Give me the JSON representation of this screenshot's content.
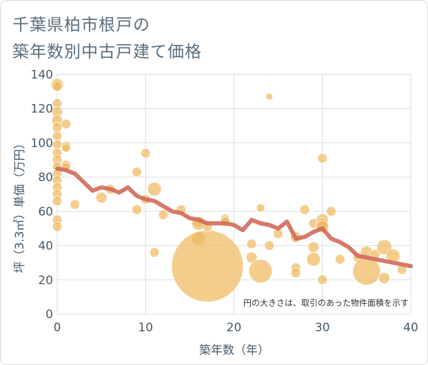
{
  "title_line1": "千葉県柏市根戸の",
  "title_line2": "築年数別中古戸建て価格",
  "colors": {
    "bubble": "#f0b85c",
    "line": "#d2695a",
    "grid": "#d6dde6",
    "text": "#44596b"
  },
  "chart_data": {
    "type": "scatter",
    "xlabel": "築年数（年）",
    "ylabel": "坪（3.3㎡）単価（万円）",
    "xlim": [
      0,
      40
    ],
    "ylim": [
      0,
      140
    ],
    "xticks": [
      0,
      10,
      20,
      30,
      40
    ],
    "yticks": [
      0,
      20,
      40,
      60,
      80,
      100,
      120,
      140
    ],
    "grid": true,
    "note": "円の大きさは、取引のあった物件面積を示す",
    "points": [
      {
        "x": 0,
        "y": 134,
        "s": 9
      },
      {
        "x": 0,
        "y": 133,
        "s": 7
      },
      {
        "x": 0,
        "y": 123,
        "s": 7
      },
      {
        "x": 0,
        "y": 118,
        "s": 8
      },
      {
        "x": 0,
        "y": 113,
        "s": 8
      },
      {
        "x": 0,
        "y": 109,
        "s": 7
      },
      {
        "x": 0,
        "y": 104,
        "s": 7
      },
      {
        "x": 0,
        "y": 99,
        "s": 7
      },
      {
        "x": 0,
        "y": 94,
        "s": 7
      },
      {
        "x": 0,
        "y": 90,
        "s": 7
      },
      {
        "x": 0,
        "y": 86,
        "s": 7
      },
      {
        "x": 0,
        "y": 82,
        "s": 7
      },
      {
        "x": 0,
        "y": 78,
        "s": 7
      },
      {
        "x": 0,
        "y": 74,
        "s": 7
      },
      {
        "x": 0,
        "y": 70,
        "s": 7
      },
      {
        "x": 0,
        "y": 66,
        "s": 7
      },
      {
        "x": 0,
        "y": 55,
        "s": 7
      },
      {
        "x": 0,
        "y": 51,
        "s": 7
      },
      {
        "x": 1,
        "y": 111,
        "s": 7
      },
      {
        "x": 1,
        "y": 98,
        "s": 7
      },
      {
        "x": 1,
        "y": 97,
        "s": 6
      },
      {
        "x": 1,
        "y": 87,
        "s": 7
      },
      {
        "x": 1,
        "y": 86,
        "s": 6
      },
      {
        "x": 2,
        "y": 64,
        "s": 7
      },
      {
        "x": 5,
        "y": 68,
        "s": 8
      },
      {
        "x": 6,
        "y": 73,
        "s": 7
      },
      {
        "x": 9,
        "y": 83,
        "s": 7
      },
      {
        "x": 9,
        "y": 61,
        "s": 7
      },
      {
        "x": 10,
        "y": 94,
        "s": 7
      },
      {
        "x": 10,
        "y": 67,
        "s": 7
      },
      {
        "x": 11,
        "y": 73,
        "s": 10
      },
      {
        "x": 11,
        "y": 36,
        "s": 7
      },
      {
        "x": 12,
        "y": 58,
        "s": 7
      },
      {
        "x": 14,
        "y": 61,
        "s": 7
      },
      {
        "x": 16,
        "y": 54,
        "s": 8
      },
      {
        "x": 16,
        "y": 53,
        "s": 10
      },
      {
        "x": 16,
        "y": 44,
        "s": 10
      },
      {
        "x": 17,
        "y": 28,
        "s": 52
      },
      {
        "x": 17,
        "y": 51,
        "s": 7
      },
      {
        "x": 19,
        "y": 56,
        "s": 6
      },
      {
        "x": 19,
        "y": 54,
        "s": 7
      },
      {
        "x": 22,
        "y": 41,
        "s": 7
      },
      {
        "x": 22,
        "y": 33,
        "s": 8
      },
      {
        "x": 23,
        "y": 62,
        "s": 6
      },
      {
        "x": 23,
        "y": 25,
        "s": 17
      },
      {
        "x": 24,
        "y": 127,
        "s": 5
      },
      {
        "x": 24,
        "y": 40,
        "s": 7
      },
      {
        "x": 25,
        "y": 47,
        "s": 7
      },
      {
        "x": 27,
        "y": 45,
        "s": 8
      },
      {
        "x": 27,
        "y": 27,
        "s": 7
      },
      {
        "x": 27,
        "y": 24,
        "s": 7
      },
      {
        "x": 28,
        "y": 61,
        "s": 7
      },
      {
        "x": 29,
        "y": 53,
        "s": 7
      },
      {
        "x": 29,
        "y": 39,
        "s": 8
      },
      {
        "x": 29,
        "y": 32,
        "s": 10
      },
      {
        "x": 30,
        "y": 91,
        "s": 7
      },
      {
        "x": 30,
        "y": 55,
        "s": 9
      },
      {
        "x": 30,
        "y": 53,
        "s": 8
      },
      {
        "x": 30,
        "y": 51,
        "s": 9
      },
      {
        "x": 30,
        "y": 20,
        "s": 7
      },
      {
        "x": 31,
        "y": 60,
        "s": 7
      },
      {
        "x": 32,
        "y": 32,
        "s": 7
      },
      {
        "x": 34,
        "y": 33,
        "s": 7
      },
      {
        "x": 35,
        "y": 36,
        "s": 9
      },
      {
        "x": 35,
        "y": 25,
        "s": 20
      },
      {
        "x": 36,
        "y": 35,
        "s": 7
      },
      {
        "x": 37,
        "y": 39,
        "s": 11
      },
      {
        "x": 37,
        "y": 21,
        "s": 8
      },
      {
        "x": 38,
        "y": 34,
        "s": 10
      },
      {
        "x": 39,
        "y": 26,
        "s": 7
      }
    ],
    "trend": [
      {
        "x": 0,
        "y": 85
      },
      {
        "x": 1,
        "y": 84
      },
      {
        "x": 2,
        "y": 82
      },
      {
        "x": 3,
        "y": 77
      },
      {
        "x": 4,
        "y": 72
      },
      {
        "x": 5,
        "y": 74
      },
      {
        "x": 6,
        "y": 73
      },
      {
        "x": 7,
        "y": 71
      },
      {
        "x": 8,
        "y": 74
      },
      {
        "x": 9,
        "y": 69
      },
      {
        "x": 10,
        "y": 67
      },
      {
        "x": 11,
        "y": 66
      },
      {
        "x": 12,
        "y": 63
      },
      {
        "x": 13,
        "y": 60
      },
      {
        "x": 14,
        "y": 59
      },
      {
        "x": 15,
        "y": 56
      },
      {
        "x": 16,
        "y": 55
      },
      {
        "x": 17,
        "y": 53
      },
      {
        "x": 18,
        "y": 53
      },
      {
        "x": 19,
        "y": 53
      },
      {
        "x": 20,
        "y": 52
      },
      {
        "x": 21,
        "y": 49
      },
      {
        "x": 22,
        "y": 55
      },
      {
        "x": 23,
        "y": 53
      },
      {
        "x": 24,
        "y": 52
      },
      {
        "x": 25,
        "y": 50
      },
      {
        "x": 26,
        "y": 54
      },
      {
        "x": 27,
        "y": 44
      },
      {
        "x": 28,
        "y": 45
      },
      {
        "x": 29,
        "y": 48
      },
      {
        "x": 30,
        "y": 50
      },
      {
        "x": 31,
        "y": 44
      },
      {
        "x": 32,
        "y": 42
      },
      {
        "x": 33,
        "y": 39
      },
      {
        "x": 34,
        "y": 34
      },
      {
        "x": 35,
        "y": 33
      },
      {
        "x": 36,
        "y": 32
      },
      {
        "x": 37,
        "y": 31
      },
      {
        "x": 38,
        "y": 30
      },
      {
        "x": 39,
        "y": 29
      },
      {
        "x": 40,
        "y": 28
      }
    ]
  }
}
